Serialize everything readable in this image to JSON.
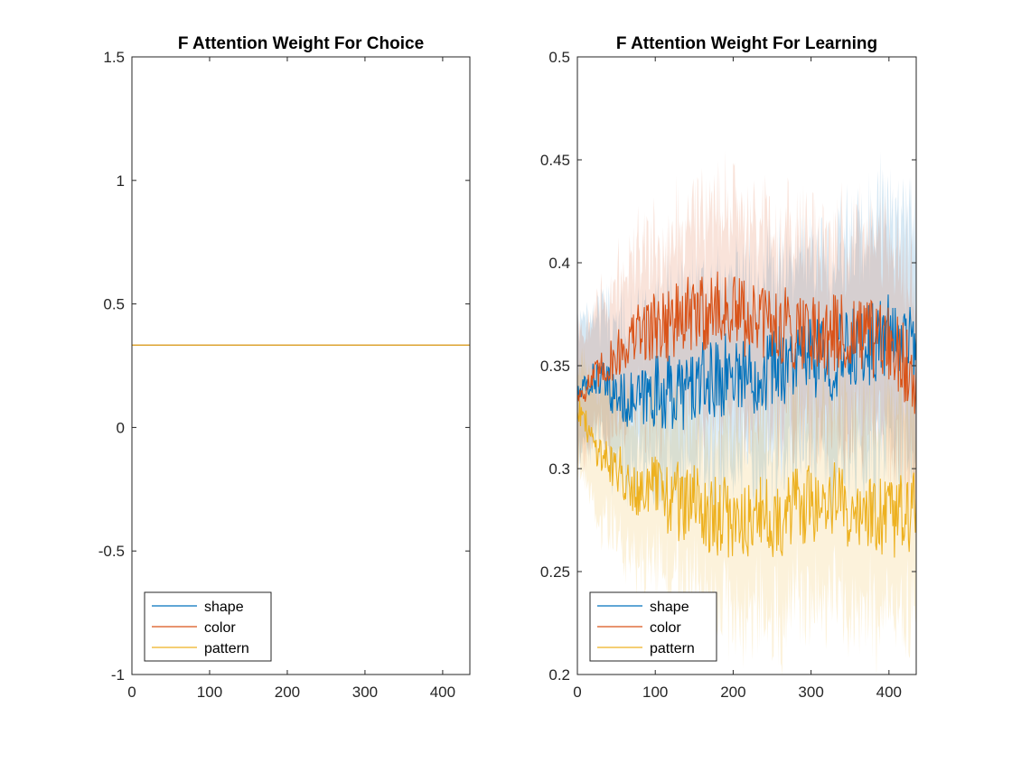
{
  "series_colors": {
    "shape": "#0072BD",
    "color": "#D95319",
    "pattern": "#EDB120"
  },
  "chart_data": [
    {
      "type": "line",
      "title": "F Attention Weight For Choice",
      "xlabel": "",
      "ylabel": "",
      "xlim": [
        0,
        435
      ],
      "ylim": [
        -1,
        1.5
      ],
      "xticks": [
        0,
        100,
        200,
        300,
        400
      ],
      "xtick_labels": [
        "0",
        "100",
        "200",
        "300",
        "400"
      ],
      "yticks": [
        -1,
        -0.5,
        0,
        0.5,
        1,
        1.5
      ],
      "ytick_labels": [
        "-1",
        "-0.5",
        "0",
        "0.5",
        "1",
        "1.5"
      ],
      "grid": false,
      "legend_position": "bottom-left",
      "series": [
        {
          "name": "shape",
          "x": [
            0,
            435
          ],
          "y": [
            0.3333,
            0.3333
          ]
        },
        {
          "name": "color",
          "x": [
            0,
            435
          ],
          "y": [
            0.3333,
            0.3333
          ]
        },
        {
          "name": "pattern",
          "x": [
            0,
            435
          ],
          "y": [
            0.3333,
            0.3333
          ]
        }
      ]
    },
    {
      "type": "line",
      "title": "F Attention Weight For Learning",
      "xlabel": "",
      "ylabel": "",
      "xlim": [
        0,
        435
      ],
      "ylim": [
        0.2,
        0.5
      ],
      "xticks": [
        0,
        100,
        200,
        300,
        400
      ],
      "xtick_labels": [
        "0",
        "100",
        "200",
        "300",
        "400"
      ],
      "yticks": [
        0.2,
        0.25,
        0.3,
        0.35,
        0.4,
        0.45,
        0.5
      ],
      "ytick_labels": [
        "0.2",
        "0.25",
        "0.3",
        "0.35",
        "0.4",
        "0.45",
        "0.5"
      ],
      "grid": false,
      "legend_position": "bottom-left",
      "shaded_band": true,
      "series": [
        {
          "name": "shape",
          "x": [
            0,
            25,
            50,
            75,
            100,
            125,
            150,
            175,
            200,
            225,
            250,
            275,
            300,
            325,
            350,
            375,
            400,
            435
          ],
          "y": [
            0.335,
            0.345,
            0.335,
            0.332,
            0.338,
            0.336,
            0.34,
            0.343,
            0.348,
            0.345,
            0.35,
            0.352,
            0.355,
            0.352,
            0.358,
            0.36,
            0.365,
            0.362
          ],
          "band": [
            0.03,
            0.03,
            0.032,
            0.035,
            0.038,
            0.04,
            0.042,
            0.045,
            0.045,
            0.045,
            0.047,
            0.048,
            0.05,
            0.05,
            0.052,
            0.055,
            0.058,
            0.058
          ]
        },
        {
          "name": "color",
          "x": [
            0,
            25,
            50,
            75,
            100,
            125,
            150,
            175,
            200,
            225,
            250,
            275,
            300,
            325,
            350,
            375,
            400,
            435
          ],
          "y": [
            0.335,
            0.345,
            0.355,
            0.365,
            0.37,
            0.372,
            0.374,
            0.378,
            0.375,
            0.372,
            0.37,
            0.368,
            0.368,
            0.365,
            0.365,
            0.362,
            0.36,
            0.345
          ],
          "band": [
            0.03,
            0.03,
            0.034,
            0.037,
            0.04,
            0.042,
            0.045,
            0.048,
            0.048,
            0.047,
            0.046,
            0.046,
            0.045,
            0.045,
            0.045,
            0.046,
            0.048,
            0.048
          ]
        },
        {
          "name": "pattern",
          "x": [
            0,
            25,
            50,
            75,
            100,
            125,
            150,
            175,
            200,
            225,
            250,
            275,
            300,
            325,
            350,
            375,
            400,
            435
          ],
          "y": [
            0.33,
            0.31,
            0.3,
            0.292,
            0.29,
            0.285,
            0.282,
            0.278,
            0.275,
            0.277,
            0.275,
            0.28,
            0.282,
            0.285,
            0.28,
            0.278,
            0.275,
            0.28
          ],
          "band": [
            0.025,
            0.03,
            0.032,
            0.035,
            0.038,
            0.04,
            0.04,
            0.042,
            0.045,
            0.045,
            0.046,
            0.046,
            0.047,
            0.047,
            0.048,
            0.048,
            0.05,
            0.05
          ]
        }
      ]
    }
  ]
}
